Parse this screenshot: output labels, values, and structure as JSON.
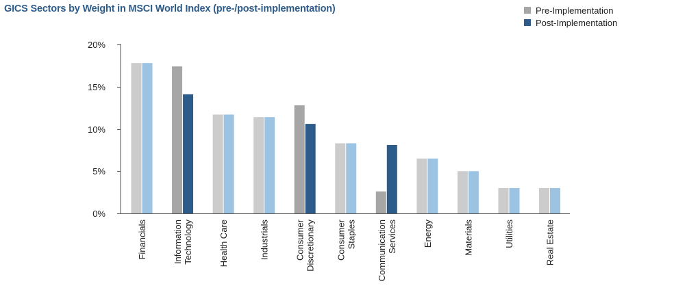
{
  "chart_data": {
    "type": "bar",
    "title": "GICS Sectors by Weight in MSCI World Index (pre-/post-implementation)",
    "xlabel": "",
    "ylabel": "",
    "ylim": [
      0,
      20
    ],
    "yticks": [
      0,
      5,
      10,
      15,
      20
    ],
    "ytick_labels": [
      "0%",
      "5%",
      "10%",
      "15%",
      "20%"
    ],
    "categories": [
      [
        "Financials"
      ],
      [
        "Information",
        "Technology"
      ],
      [
        "Health Care"
      ],
      [
        "Industrials"
      ],
      [
        "Consumer",
        "Discretionary"
      ],
      [
        "Consumer",
        "Staples"
      ],
      [
        "Communication",
        "Services"
      ],
      [
        "Energy"
      ],
      [
        "Materials"
      ],
      [
        "Utilities"
      ],
      [
        "Real Estate"
      ]
    ],
    "changed": [
      false,
      true,
      false,
      false,
      true,
      false,
      true,
      false,
      false,
      false,
      false
    ],
    "series": [
      {
        "name": "Pre-Implementation",
        "values": [
          17.8,
          17.4,
          11.7,
          11.4,
          12.8,
          8.3,
          2.6,
          6.5,
          5.0,
          3.0,
          3.0
        ]
      },
      {
        "name": "Post-Implementation",
        "values": [
          17.8,
          14.1,
          11.7,
          11.4,
          10.6,
          8.3,
          8.1,
          6.5,
          5.0,
          3.0,
          3.0
        ]
      }
    ],
    "grid": false,
    "legend_position": "top-right",
    "colors": {
      "pre_changed": "#a6a6a6",
      "post_changed": "#2e5c8a",
      "pre_unchanged": "#cccccc",
      "post_unchanged": "#9dc3e2",
      "title": "#2e5c8a",
      "axis": "#555555"
    }
  }
}
